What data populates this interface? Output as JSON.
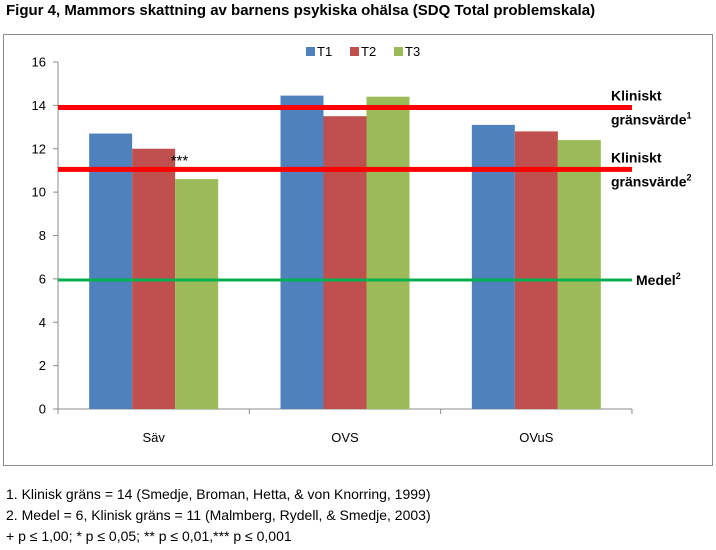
{
  "title": "Figur 4, Mammors skattning av barnens psykiska ohälsa (SDQ Total problemskala)",
  "chart_data": {
    "type": "bar",
    "categories": [
      "Säv",
      "OVS",
      "OVuS"
    ],
    "series": [
      {
        "name": "T1",
        "color": "#4F81BD",
        "values": [
          12.7,
          14.45,
          13.1
        ]
      },
      {
        "name": "T2",
        "color": "#C0504D",
        "values": [
          12.0,
          13.5,
          12.8
        ]
      },
      {
        "name": "T3",
        "color": "#9BBB59",
        "values": [
          10.6,
          14.4,
          12.4
        ]
      }
    ],
    "ylim": [
      0,
      16
    ],
    "yticks": [
      0,
      2,
      4,
      6,
      8,
      10,
      12,
      14,
      16
    ],
    "legend_position": "top",
    "grid": false,
    "reference_lines": [
      {
        "value": 13.9,
        "color": "#FF0000",
        "label": "Kliniskt",
        "label2": "gränsvärde",
        "sup": "1"
      },
      {
        "value": 11.05,
        "color": "#FF0000",
        "label": "Kliniskt",
        "label2": "gränsvärde",
        "sup": "2"
      },
      {
        "value": 5.95,
        "color": "#00B050",
        "label": "Medel",
        "label2": "",
        "sup": "2"
      }
    ],
    "annotations": [
      {
        "text": "***",
        "category": "Säv",
        "y": 11.5
      }
    ]
  },
  "footnotes": [
    "1. Klinisk gräns = 14 (Smedje, Broman, Hetta, & von Knorring, 1999)",
    "2. Medel = 6, Klinisk gräns = 11 (Malmberg, Rydell, & Smedje, 2003)",
    "+ p ≤ 1,00; * p ≤ 0,05; ** p ≤ 0,01,*** p ≤ 0,001"
  ]
}
